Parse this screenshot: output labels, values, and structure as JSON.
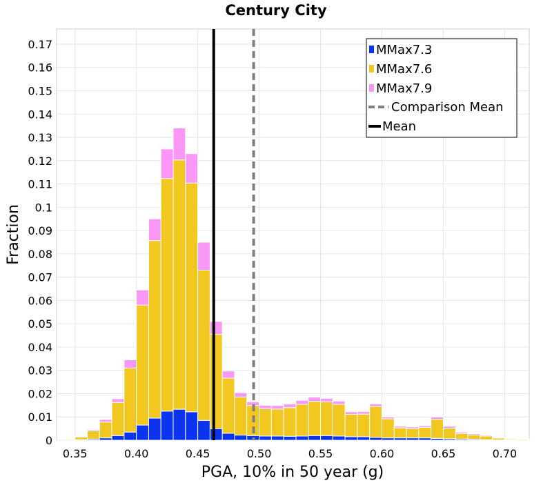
{
  "chart_data": {
    "type": "bar",
    "stacked": true,
    "title": "Century City",
    "xlabel": "PGA, 10% in 50 year (g)",
    "ylabel": "Fraction",
    "xlim": [
      0.335,
      0.72
    ],
    "ylim": [
      0,
      0.1765
    ],
    "grid": true,
    "legend_position": "top-right",
    "bin_width": 0.01,
    "xticks": [
      "0.35",
      "0.40",
      "0.45",
      "0.50",
      "0.55",
      "0.60",
      "0.65",
      "0.70"
    ],
    "yticks": [
      "0",
      "0.01",
      "0.02",
      "0.03",
      "0.04",
      "0.05",
      "0.06",
      "0.07",
      "0.08",
      "0.09",
      "0.1",
      "0.11",
      "0.12",
      "0.13",
      "0.14",
      "0.15",
      "0.16",
      "0.17"
    ],
    "bins": [
      0.345,
      0.355,
      0.365,
      0.375,
      0.385,
      0.395,
      0.405,
      0.415,
      0.425,
      0.435,
      0.445,
      0.455,
      0.465,
      0.475,
      0.485,
      0.495,
      0.505,
      0.515,
      0.525,
      0.535,
      0.545,
      0.555,
      0.565,
      0.575,
      0.585,
      0.595,
      0.605,
      0.615,
      0.625,
      0.635,
      0.645,
      0.655,
      0.665,
      0.675,
      0.685,
      0.695,
      0.705,
      0.715
    ],
    "series": [
      {
        "name": "MMax7.3",
        "color": "#0a34f0",
        "values": [
          0,
          0.0002,
          0.0005,
          0.001,
          0.002,
          0.0035,
          0.0065,
          0.0095,
          0.0125,
          0.0133,
          0.0122,
          0.0085,
          0.005,
          0.003,
          0.0022,
          0.002,
          0.0018,
          0.0018,
          0.0017,
          0.0018,
          0.002,
          0.002,
          0.0018,
          0.0015,
          0.0015,
          0.0012,
          0.001,
          0.001,
          0.001,
          0.001,
          0.0008,
          0.0006,
          0.0005,
          0.0004,
          0.0002,
          0.0001,
          0.0002,
          0
        ]
      },
      {
        "name": "MMax7.6",
        "color": "#f2c820",
        "values": [
          0.0004,
          0.0012,
          0.0035,
          0.0068,
          0.0142,
          0.0275,
          0.0515,
          0.0762,
          0.0998,
          0.107,
          0.0982,
          0.0645,
          0.0405,
          0.0237,
          0.0163,
          0.0129,
          0.0117,
          0.0116,
          0.0123,
          0.0136,
          0.0147,
          0.0145,
          0.0136,
          0.0096,
          0.0097,
          0.0133,
          0.0082,
          0.0043,
          0.004,
          0.0045,
          0.0082,
          0.0046,
          0.0024,
          0.0019,
          0.0016,
          0.0008,
          0.0004,
          0.0004
        ]
      },
      {
        "name": "MMax7.9",
        "color": "#fa96f5",
        "values": [
          0.0001,
          0.0003,
          0.0005,
          0.0011,
          0.0016,
          0.0035,
          0.0065,
          0.0093,
          0.0127,
          0.0137,
          0.0126,
          0.012,
          0.0055,
          0.003,
          0.0019,
          0.0016,
          0.0015,
          0.0015,
          0.0015,
          0.0017,
          0.0018,
          0.0015,
          0.0014,
          0.0011,
          0.0011,
          0.0011,
          0.0008,
          0.0007,
          0.0007,
          0.0007,
          0.001,
          0.0008,
          0.0006,
          0.0005,
          0.0004,
          0.0003,
          0.0002,
          0.0001
        ]
      }
    ],
    "reference_lines": [
      {
        "name": "Comparison Mean",
        "x": 0.4955,
        "color": "#808080",
        "style": "dashed"
      },
      {
        "name": "Mean",
        "x": 0.463,
        "color": "#000000",
        "style": "solid"
      }
    ]
  }
}
